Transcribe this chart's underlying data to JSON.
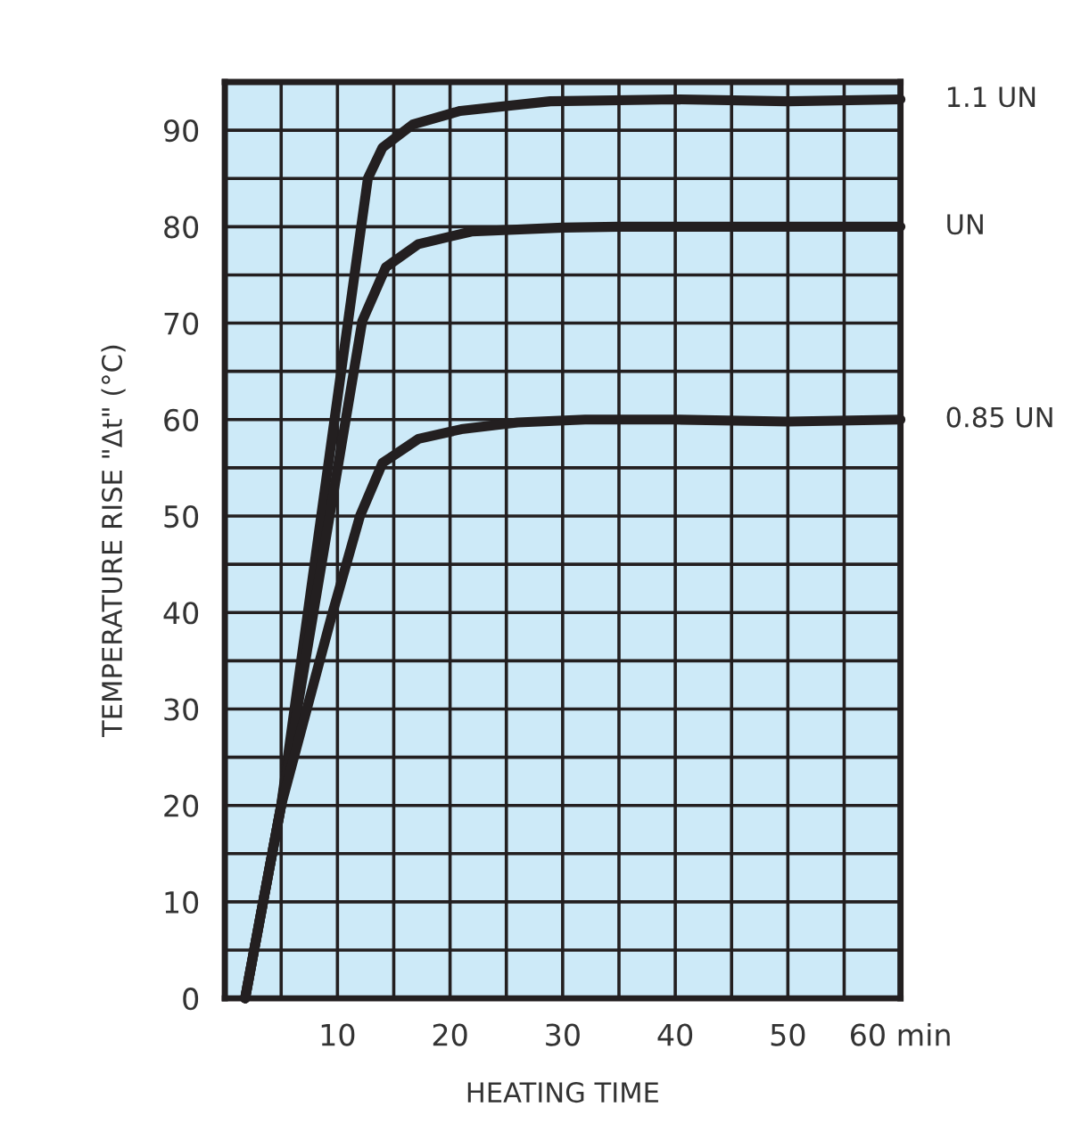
{
  "chart_data": {
    "type": "line",
    "xlabel": "HEATING TIME",
    "ylabel": "TEMPERATURE RISE \"Δt\" (°C)",
    "xlim": [
      0,
      60
    ],
    "ylim": [
      0,
      95
    ],
    "xticks": [
      {
        "value": 0,
        "label": null
      },
      {
        "value": 5,
        "label": null
      },
      10,
      {
        "value": 15,
        "label": null
      },
      20,
      {
        "value": 25,
        "label": null
      },
      30,
      {
        "value": 35,
        "label": null
      },
      40,
      {
        "value": 45,
        "label": null
      },
      50,
      {
        "value": 55,
        "label": null
      },
      {
        "value": 60,
        "label": "60 min"
      }
    ],
    "yticks": [
      0,
      {
        "value": 5,
        "label": null
      },
      10,
      {
        "value": 15,
        "label": null
      },
      20,
      {
        "value": 25,
        "label": null
      },
      30,
      {
        "value": 35,
        "label": null
      },
      40,
      {
        "value": 45,
        "label": null
      },
      50,
      {
        "value": 55,
        "label": null
      },
      60,
      {
        "value": 65,
        "label": null
      },
      70,
      {
        "value": 75,
        "label": null
      },
      80,
      {
        "value": 85,
        "label": null
      },
      90
    ],
    "grid": true,
    "legend": false,
    "marker": "none",
    "line_style": "solid",
    "series": [
      {
        "name": "1.1 UN",
        "color": "#231f20",
        "x": [
          1.8,
          5.0,
          12.7,
          14.0,
          16.7,
          20.9,
          28.9,
          40,
          50,
          60
        ],
        "values": [
          0,
          20,
          85,
          88.2,
          90.6,
          92,
          93,
          93.2,
          93,
          93.2
        ]
      },
      {
        "name": "UN",
        "color": "#231f20",
        "x": [
          1.8,
          5.0,
          12.2,
          14.3,
          17.2,
          21.9,
          30,
          35,
          45,
          60
        ],
        "values": [
          0,
          20,
          70.2,
          75.8,
          78.2,
          79.5,
          79.9,
          80,
          80,
          80
        ]
      },
      {
        "name": "0.85 UN",
        "color": "#231f20",
        "x": [
          1.8,
          5.0,
          9.5,
          12.0,
          14.0,
          17.2,
          21.0,
          26.0,
          32,
          40,
          50,
          60
        ],
        "values": [
          0,
          20,
          39.7,
          50,
          55.5,
          58,
          59,
          59.7,
          60,
          60,
          59.8,
          60
        ]
      }
    ]
  }
}
